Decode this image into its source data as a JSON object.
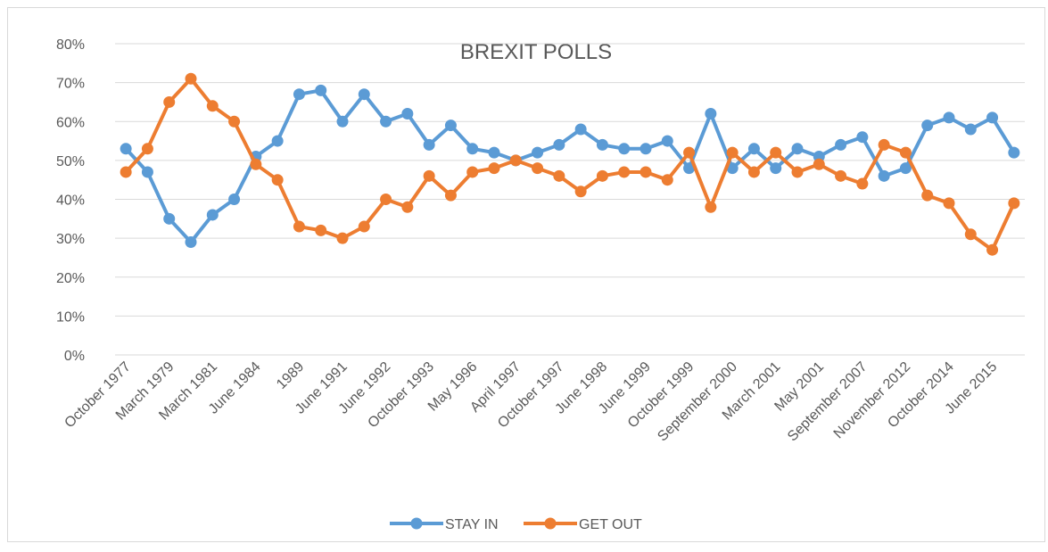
{
  "chart_data": {
    "type": "line",
    "title": "BREXIT POLLS",
    "xlabel": "",
    "ylabel": "",
    "ylim": [
      0,
      80
    ],
    "y_ticks": [
      "0%",
      "10%",
      "20%",
      "30%",
      "40%",
      "50%",
      "60%",
      "70%",
      "80%"
    ],
    "y_tick_values": [
      0,
      10,
      20,
      30,
      40,
      50,
      60,
      70,
      80
    ],
    "grid": true,
    "legend_position": "bottom",
    "categories": [
      "October 1977",
      "",
      "March 1979",
      "",
      "March 1981",
      "",
      "June 1984",
      "",
      "1989",
      "",
      "June 1991",
      "",
      "June 1992",
      "",
      "October 1993",
      "",
      "May 1996",
      "",
      "April 1997",
      "",
      "October 1997",
      "",
      "June 1998",
      "",
      "June 1999",
      "",
      "October 1999",
      "",
      "September 2000",
      "",
      "March 2001",
      "",
      "May 2001",
      "",
      "September 2007",
      "",
      "November 2012",
      "",
      "October 2014",
      "",
      "June 2015",
      ""
    ],
    "series": [
      {
        "name": "STAY IN",
        "color": "#5b9bd5",
        "values": [
          53,
          47,
          35,
          29,
          36,
          40,
          51,
          55,
          67,
          68,
          60,
          67,
          60,
          62,
          54,
          59,
          53,
          52,
          50,
          52,
          54,
          58,
          54,
          53,
          53,
          55,
          48,
          62,
          48,
          53,
          48,
          53,
          51,
          54,
          56,
          46,
          48,
          59,
          61,
          58,
          61,
          52
        ]
      },
      {
        "name": "GET OUT",
        "color": "#ed7d31",
        "values": [
          47,
          53,
          65,
          71,
          64,
          60,
          49,
          45,
          33,
          32,
          30,
          33,
          40,
          38,
          46,
          41,
          47,
          48,
          50,
          48,
          46,
          42,
          46,
          47,
          47,
          45,
          52,
          38,
          52,
          47,
          52,
          47,
          49,
          46,
          44,
          54,
          52,
          41,
          39,
          31,
          27,
          39
        ]
      }
    ]
  }
}
